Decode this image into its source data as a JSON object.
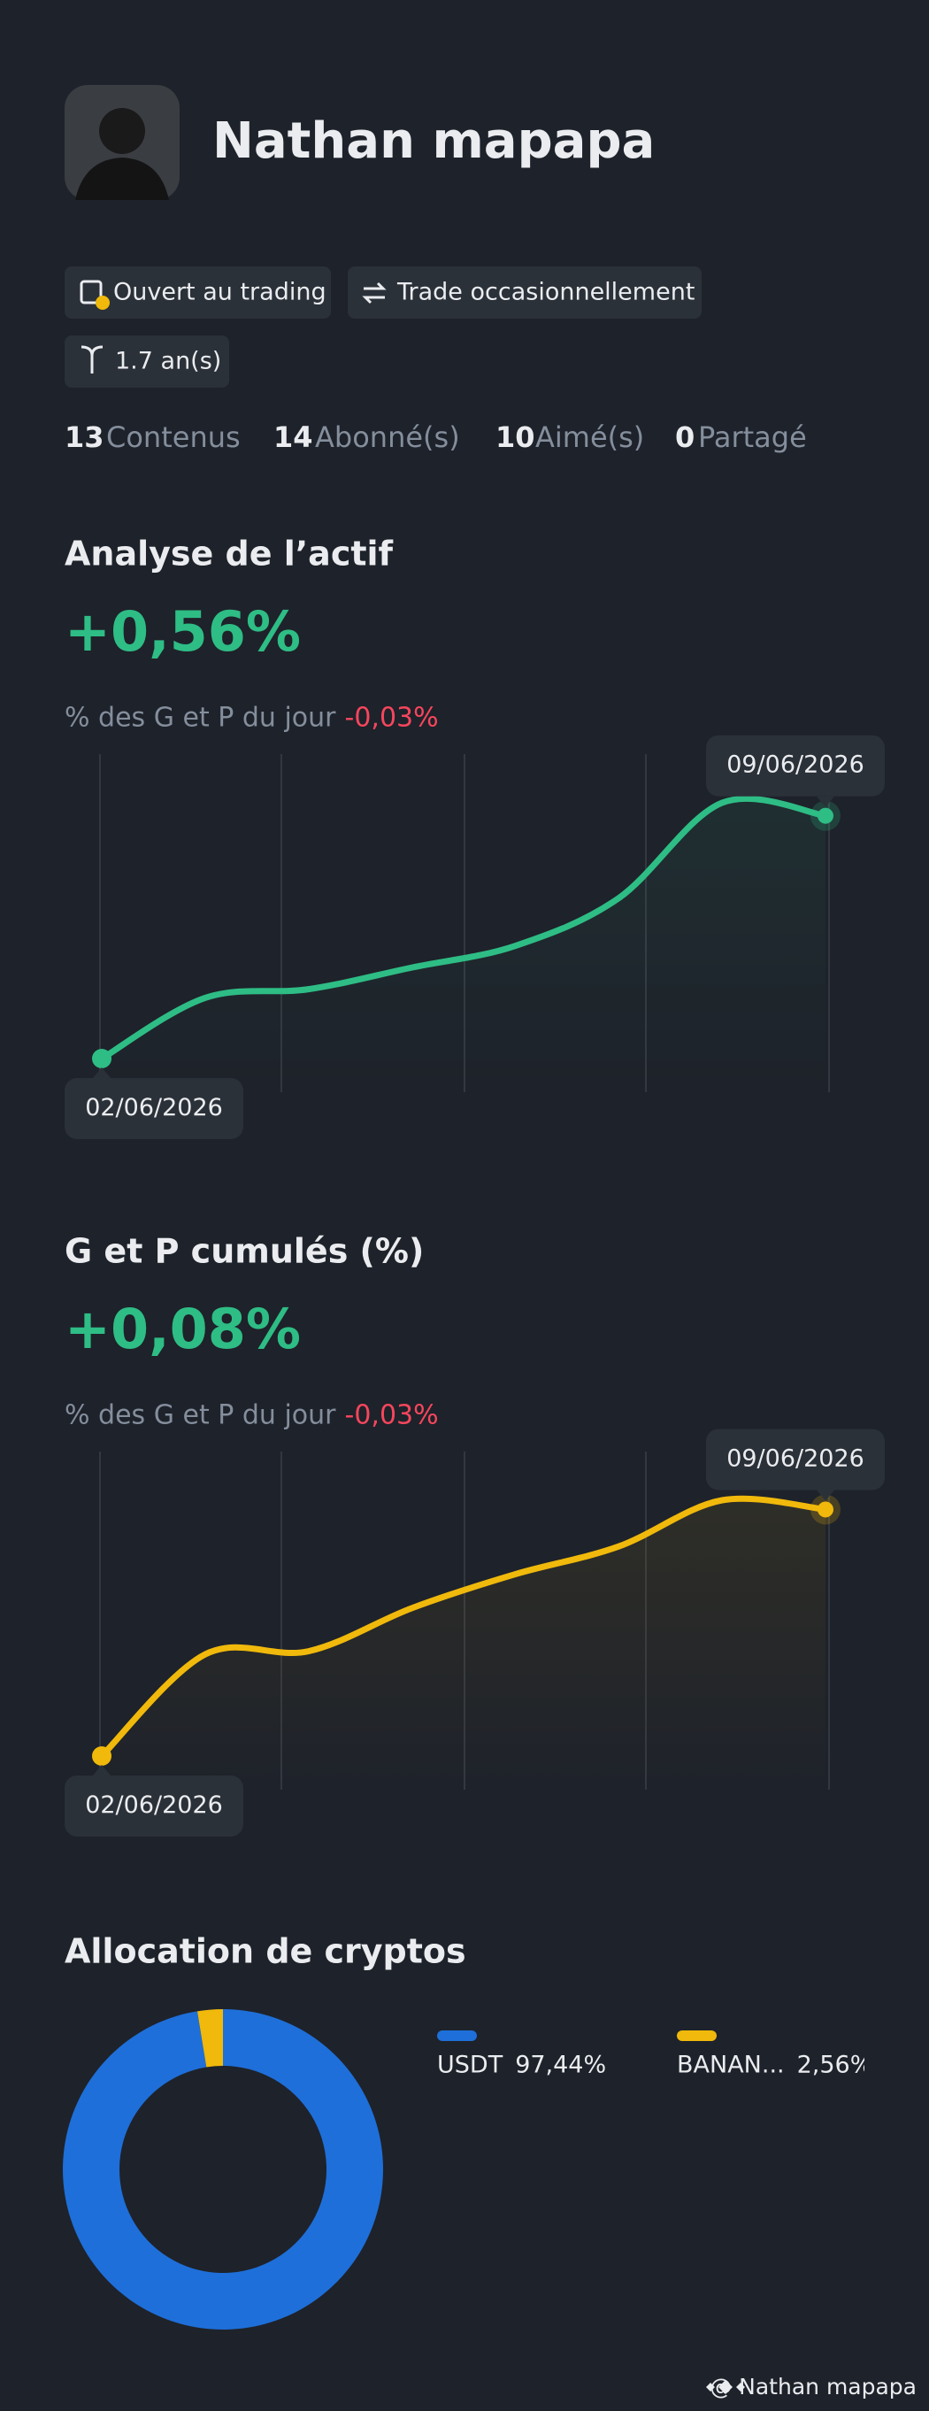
{
  "profile": {
    "name": "Nathan mapapa",
    "tags": [
      "Ouvert au trading",
      "Trade occasionnellement",
      "1.7 an(s)"
    ],
    "stats": [
      {
        "count": 13,
        "label": "Contenus"
      },
      {
        "count": 14,
        "label": "Abonné(s)"
      },
      {
        "count": 10,
        "label": "Aimé(s)"
      },
      {
        "count": 0,
        "label": "Partagé"
      }
    ]
  },
  "chart_data": [
    {
      "type": "line",
      "title": "Analyse de l’actif",
      "headline": "+0,56%",
      "subtitle": "% des G et P du jour",
      "subtitle_change": "-0,03%",
      "categories": [
        "02/06/2026",
        null,
        null,
        null,
        null,
        null,
        null,
        "09/06/2026"
      ],
      "series": [
        {
          "color": "#2ebd85",
          "values": [
            0,
            0.14,
            0.16,
            0.21,
            0.26,
            0.37,
            0.59,
            0.56
          ]
        }
      ]
    },
    {
      "type": "line",
      "title": "G et P cumulés (%)",
      "headline": "+0,08%",
      "subtitle": "% des G et P du jour",
      "subtitle_change": "-0,03%",
      "categories": [
        "02/06/2026",
        null,
        null,
        null,
        null,
        null,
        null,
        "09/06/2026"
      ],
      "series": [
        {
          "color": "#f0b90b",
          "values": [
            0,
            0.033,
            0.034,
            0.048,
            0.059,
            0.068,
            0.083,
            0.08
          ]
        }
      ]
    },
    {
      "type": "pie",
      "title": "Allocation de cryptos",
      "categories": [
        "USDT",
        "BANAN..."
      ],
      "values": [
        97.44,
        2.56
      ],
      "value_labels": [
        "97,44%",
        "2,56%"
      ],
      "colors": [
        "#1e6fd9",
        "#f0b90b"
      ]
    }
  ],
  "footer": "@ Nathan mapapa"
}
